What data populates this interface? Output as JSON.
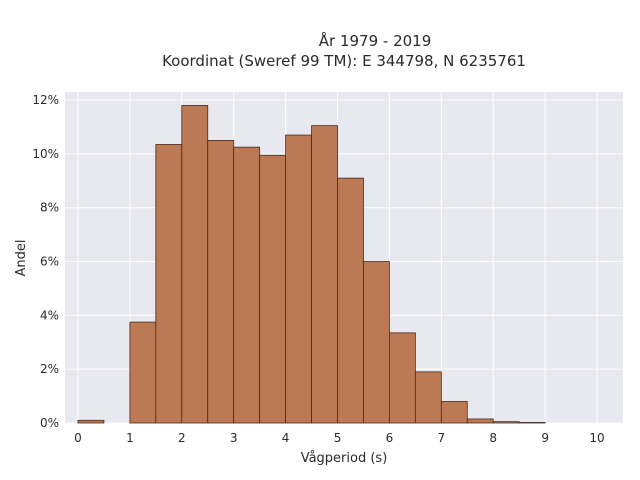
{
  "chart_data": {
    "type": "bar",
    "title_lines": [
      "År 1979 - 2019",
      "Koordinat (Sweref 99 TM): E 344798, N 6235761"
    ],
    "xlabel": "Vågperiod (s)",
    "ylabel": "Andel",
    "xlim": [
      -0.25,
      10.5
    ],
    "ylim": [
      0,
      12.3
    ],
    "x_ticks": [
      0,
      1,
      2,
      3,
      4,
      5,
      6,
      7,
      8,
      9,
      10
    ],
    "y_ticks": [
      {
        "value": 0,
        "label": "0%"
      },
      {
        "value": 2,
        "label": "2%"
      },
      {
        "value": 4,
        "label": "4%"
      },
      {
        "value": 6,
        "label": "6%"
      },
      {
        "value": 8,
        "label": "8%"
      },
      {
        "value": 10,
        "label": "10%"
      },
      {
        "value": 12,
        "label": "12%"
      }
    ],
    "bin_width": 0.5,
    "bins": [
      0,
      0.5,
      1,
      1.5,
      2,
      2.5,
      3,
      3.5,
      4,
      4.5,
      5,
      5.5,
      6,
      6.5,
      7,
      7.5,
      8,
      8.5,
      9,
      9.5
    ],
    "values": [
      0.1,
      0,
      3.75,
      10.35,
      11.8,
      10.5,
      10.25,
      9.95,
      10.7,
      11.05,
      9.1,
      6.0,
      3.35,
      1.9,
      0.8,
      0.15,
      0.05,
      0.02,
      0,
      0
    ],
    "grid": true,
    "colors": {
      "bar_fill": "#bb7a54",
      "bar_edge": "#4a2a1a",
      "plot_bg": "#e8e8f0",
      "grid": "#ffffff",
      "text": "#2a2a2a"
    }
  }
}
